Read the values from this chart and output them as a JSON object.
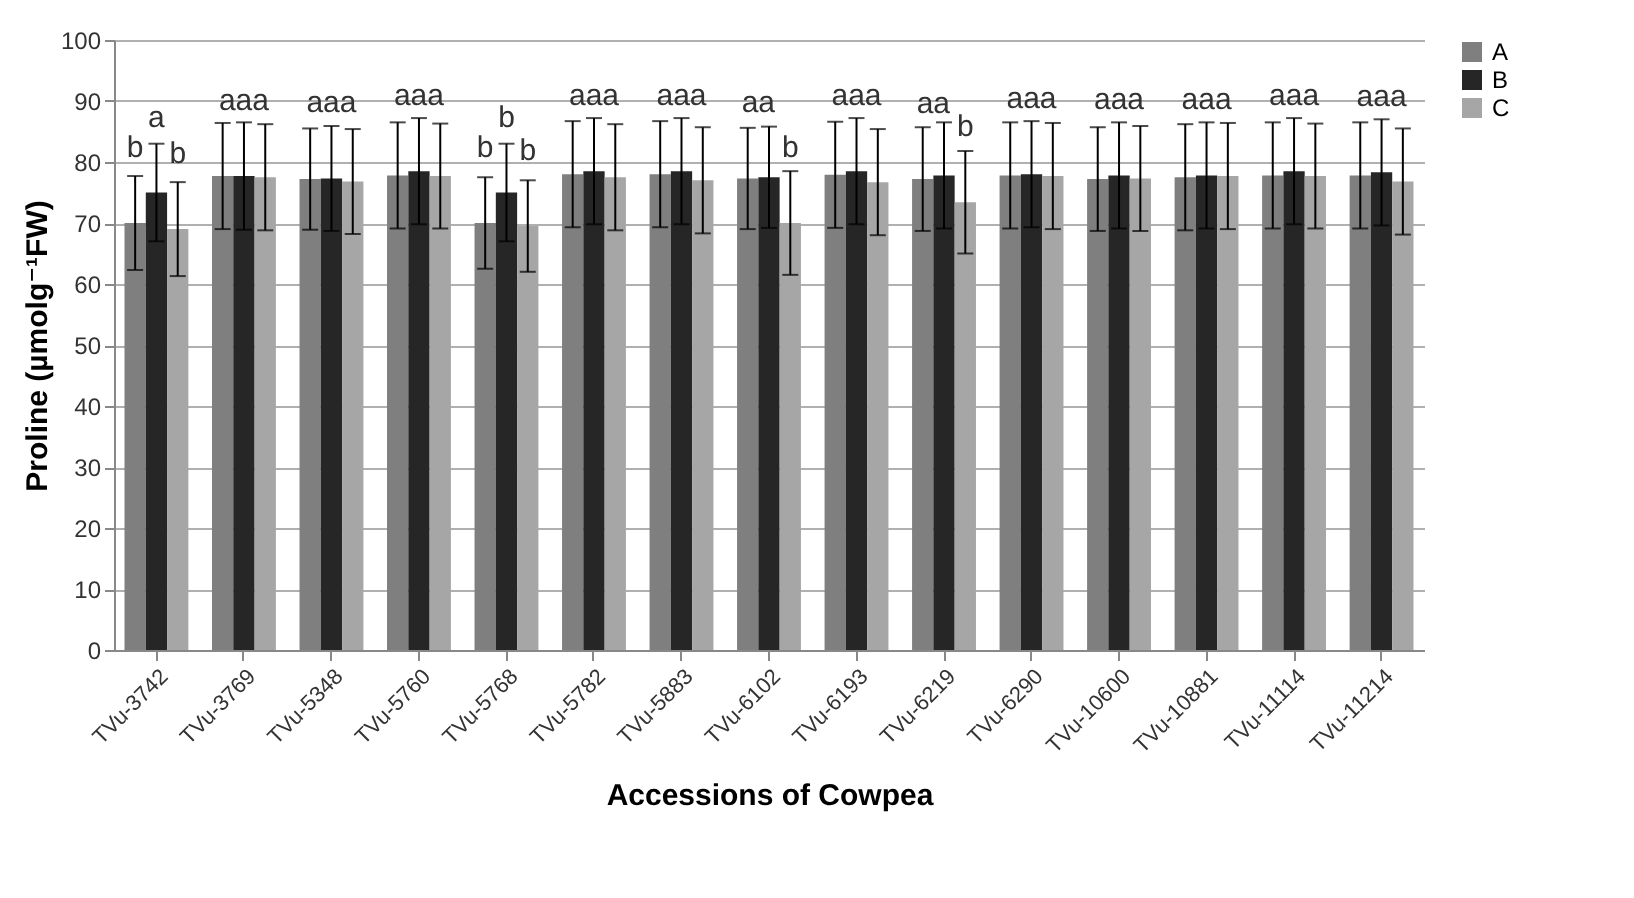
{
  "chart_data": {
    "type": "bar",
    "xlabel": "Accessions of Cowpea",
    "ylabel": "Proline (µmolg⁻¹FW)",
    "categories": [
      "TVu-3742",
      "TVu-3769",
      "TVu-5348",
      "TVu-5760",
      "TVu-5768",
      "TVu-5782",
      "TVu-5883",
      "TVu-6102",
      "TVu-6193",
      "TVu-6219",
      "TVu-6290",
      "TVu-10600",
      "TVu-10881",
      "TVu-11114",
      "TVu-11214"
    ],
    "series": [
      {
        "name": "A",
        "color": "#7f7f7f",
        "values": [
          70,
          77.7,
          77.2,
          77.8,
          70,
          78,
          78,
          77.3,
          77.9,
          77.2,
          77.8,
          77.2,
          77.5,
          77.8,
          77.8
        ],
        "errors": [
          7.7,
          8.7,
          8.3,
          8.7,
          7.5,
          8.7,
          8.7,
          8.3,
          8.7,
          8.5,
          8.7,
          8.5,
          8.7,
          8.7,
          8.7
        ]
      },
      {
        "name": "B",
        "color": "#262626",
        "values": [
          75,
          77.7,
          77.3,
          78.5,
          75,
          78.5,
          78.5,
          77.5,
          78.5,
          77.8,
          78,
          77.8,
          77.8,
          78.5,
          78.3
        ],
        "errors": [
          8,
          8.8,
          8.6,
          8.7,
          8,
          8.7,
          8.7,
          8.3,
          8.7,
          8.7,
          8.7,
          8.7,
          8.7,
          8.7,
          8.7
        ]
      },
      {
        "name": "C",
        "color": "#a6a6a6",
        "values": [
          69,
          77.5,
          76.8,
          77.7,
          69.5,
          77.5,
          77,
          70,
          76.7,
          73.4,
          77.7,
          77.3,
          77.7,
          77.7,
          76.8
        ],
        "errors": [
          7.7,
          8.7,
          8.6,
          8.6,
          7.5,
          8.7,
          8.7,
          8.5,
          8.7,
          8.4,
          8.7,
          8.6,
          8.7,
          8.6,
          8.7
        ]
      }
    ],
    "ylim": [
      0,
      100
    ],
    "yticks": [
      0,
      10,
      20,
      30,
      40,
      50,
      60,
      70,
      80,
      90,
      100
    ],
    "grid": "y",
    "legend": "right",
    "annotations": [
      {
        "text": "b",
        "x": "TVu-3742",
        "y": 70
      },
      {
        "text": "a",
        "x": "TVu-3742",
        "y": 75
      },
      {
        "text": "b",
        "x": "TVu-3742",
        "y": 69
      },
      {
        "text": "aaa",
        "x": "TVu-3769",
        "y": 77.7
      },
      {
        "text": "aaa",
        "x": "TVu-5348",
        "y": 77.3
      },
      {
        "text": "aaa",
        "x": "TVu-5760",
        "y": 78.5
      },
      {
        "text": "b",
        "x": "TVu-5768",
        "y": 70
      },
      {
        "text": "b",
        "x": "TVu-5768",
        "y": 75
      },
      {
        "text": "b",
        "x": "TVu-5768",
        "y": 69.5
      },
      {
        "text": "aaa",
        "x": "TVu-5782",
        "y": 78.5
      },
      {
        "text": "aaa",
        "x": "TVu-5883",
        "y": 78.5
      },
      {
        "text": "aa",
        "x": "TVu-6102",
        "y": 77.3
      },
      {
        "text": "b",
        "x": "TVu-6102",
        "y": 70
      },
      {
        "text": "aaa",
        "x": "TVu-6193",
        "y": 78.5
      },
      {
        "text": "aa",
        "x": "TVu-6219",
        "y": 77.2
      },
      {
        "text": "b",
        "x": "TVu-6219",
        "y": 73.4
      },
      {
        "text": "aaa",
        "x": "TVu-6290",
        "y": 78
      },
      {
        "text": "aaa",
        "x": "TVu-10600",
        "y": 77.8
      },
      {
        "text": "aaa",
        "x": "TVu-10881",
        "y": 77.8
      },
      {
        "text": "aaa",
        "x": "TVu-11114",
        "y": 78.5
      },
      {
        "text": "aaa",
        "x": "TVu-11214",
        "y": 78.3
      }
    ]
  }
}
